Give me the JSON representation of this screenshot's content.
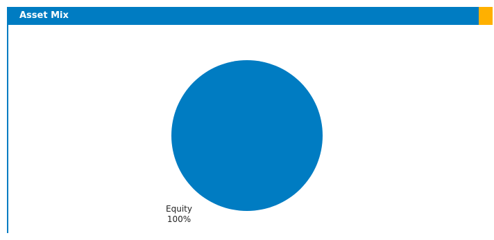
{
  "panel": {
    "title": "Asset Mix",
    "header_color": "#007cc2",
    "accent_color": "#ffb000"
  },
  "chart_data": {
    "type": "pie",
    "title": "",
    "slices": [
      {
        "label": "Equity",
        "value": 100,
        "value_label": "100%",
        "color": "#007cc2"
      }
    ],
    "legend": "none"
  }
}
